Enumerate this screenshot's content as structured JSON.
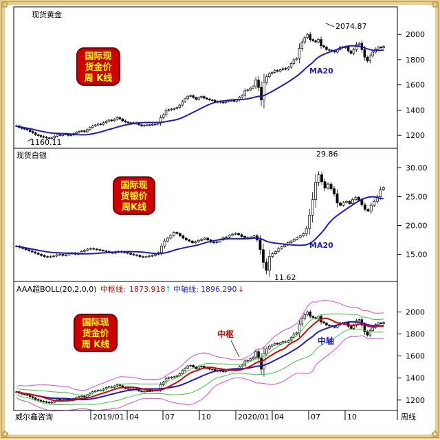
{
  "panels": {
    "gold": {
      "title": "现货黄金",
      "badge_lines": [
        "国际现",
        "货金价",
        "周 K线"
      ],
      "ma_label": "MA20",
      "high_label": "2074.87",
      "low_label": "1160.11",
      "y_ticks": [
        "2000",
        "1800",
        "1600",
        "1400",
        "1200"
      ]
    },
    "silver": {
      "title": "现货白银",
      "badge_lines": [
        "国际现",
        "货银价",
        "周K线"
      ],
      "ma_label": "MA20",
      "high_label": "29.86",
      "low_label": "11.62",
      "y_ticks": [
        "30.00",
        "25.00",
        "20.00",
        "15.00"
      ]
    },
    "boll": {
      "indicator": "AAA超BOLL(20,2,0,0)",
      "mid_label": "中枢线:",
      "mid_value": "1873.918",
      "mid_arrow": "↑",
      "axis_label": "中轴线:",
      "axis_value": "1896.290",
      "axis_arrow": "↓",
      "badge_lines": [
        "国际现",
        "货金价",
        "周 K线"
      ],
      "tag_mid": "中枢",
      "tag_axis": "中轴",
      "y_ticks": [
        "2000",
        "1800",
        "1600",
        "1400",
        "1200"
      ]
    }
  },
  "footer": {
    "source": "威尔鑫咨询",
    "x_labels": [
      "2019/01",
      "04",
      "07",
      "10",
      "2020/01",
      "04",
      "07",
      "10"
    ],
    "period": "周线"
  },
  "colors": {
    "ma": "#1a1acc",
    "up": "#000000",
    "down": "#000000",
    "mid": "#dd0000",
    "boll_outer": "#dd44dd",
    "boll_inner": "#33cc33",
    "badge_bg": "#cc0000",
    "badge_text": "#ffff00"
  },
  "chart_data": [
    {
      "type": "candlestick",
      "name": "gold_weekly",
      "ylim": [
        1130,
        2110
      ],
      "y_ticks": [
        1200,
        1400,
        1600,
        1800,
        2000
      ],
      "close": [
        1275,
        1262,
        1254,
        1250,
        1243,
        1230,
        1219,
        1205,
        1198,
        1190,
        1185,
        1180,
        1175,
        1180,
        1193,
        1205,
        1199,
        1210,
        1208,
        1200,
        1203,
        1214,
        1224,
        1230,
        1236,
        1228,
        1245,
        1262,
        1275,
        1282,
        1290,
        1287,
        1300,
        1313,
        1321,
        1316,
        1327,
        1341,
        1330,
        1315,
        1305,
        1300,
        1295,
        1300,
        1292,
        1283,
        1275,
        1280,
        1283,
        1282,
        1286,
        1288,
        1297,
        1340,
        1363,
        1398,
        1403,
        1409,
        1412,
        1420,
        1440,
        1467,
        1490,
        1510,
        1515,
        1500,
        1485,
        1500,
        1508,
        1495,
        1488,
        1480,
        1478,
        1463,
        1468,
        1462,
        1458,
        1470,
        1475,
        1476,
        1470,
        1480,
        1502,
        1517,
        1555,
        1560,
        1575,
        1590,
        1640,
        1580,
        1480,
        1620,
        1665,
        1690,
        1700,
        1715,
        1708,
        1720,
        1730,
        1725,
        1740,
        1770,
        1800,
        1810,
        1890,
        1940,
        1975,
        2000,
        1960,
        1950,
        1940,
        1960,
        1910,
        1900,
        1880,
        1875,
        1870,
        1860,
        1880,
        1900,
        1895,
        1900,
        1870,
        1850,
        1880,
        1920,
        1930,
        1880,
        1820,
        1790,
        1830,
        1860,
        1885,
        1900,
        1895,
        1905
      ],
      "high_label": 2074.87,
      "low_label": 1160.11,
      "ma20_visible_span": [
        1275,
        1730
      ]
    },
    {
      "type": "candlestick",
      "name": "silver_weekly",
      "ylim": [
        11.0,
        31.5
      ],
      "y_ticks": [
        15,
        20,
        25,
        30
      ],
      "close": [
        16.4,
        16.2,
        16.0,
        15.8,
        15.6,
        15.4,
        15.2,
        15.0,
        14.8,
        14.6,
        14.5,
        14.6,
        14.7,
        14.9,
        15.0,
        14.8,
        14.9,
        15.1,
        15.2,
        15.0,
        15.2,
        15.5,
        15.7,
        15.9,
        16.0,
        15.9,
        15.8,
        15.7,
        15.6,
        15.5,
        15.3,
        15.2,
        15.4,
        15.5,
        15.4,
        15.3,
        15.2,
        15.0,
        14.9,
        14.8,
        14.6,
        14.5,
        14.6,
        14.7,
        14.8,
        15.0,
        15.3,
        16.4,
        17.3,
        17.8,
        18.3,
        18.8,
        18.6,
        18.2,
        17.8,
        17.5,
        17.3,
        17.0,
        17.2,
        17.4,
        17.6,
        17.8,
        17.5,
        17.1,
        17.0,
        17.2,
        17.5,
        17.9,
        18.0,
        18.3,
        18.5,
        18.6,
        18.4,
        18.1,
        17.9,
        17.8,
        18.0,
        18.2,
        17.5,
        15.8,
        13.6,
        12.2,
        14.6,
        15.1,
        15.5,
        16.0,
        16.3,
        16.6,
        17.0,
        17.3,
        17.6,
        17.9,
        18.2,
        18.6,
        19.5,
        21.8,
        24.5,
        27.5,
        28.8,
        27.6,
        26.5,
        27.2,
        26.4,
        25.5,
        23.9,
        23.5,
        24.0,
        24.2,
        23.8,
        24.5,
        24.9,
        24.4,
        23.6,
        22.8,
        22.5,
        23.5,
        24.2,
        25.0,
        26.2,
        26.6
      ],
      "high_label": 29.86,
      "low_label": 11.62
    },
    {
      "type": "line",
      "name": "gold_boll",
      "ylim": [
        1130,
        2140
      ],
      "y_ticks": [
        1200,
        1400,
        1600,
        1800,
        2000
      ],
      "series": [
        {
          "name": "中枢线",
          "last": 1873.918
        },
        {
          "name": "中轴线",
          "last": 1896.29
        }
      ]
    }
  ]
}
